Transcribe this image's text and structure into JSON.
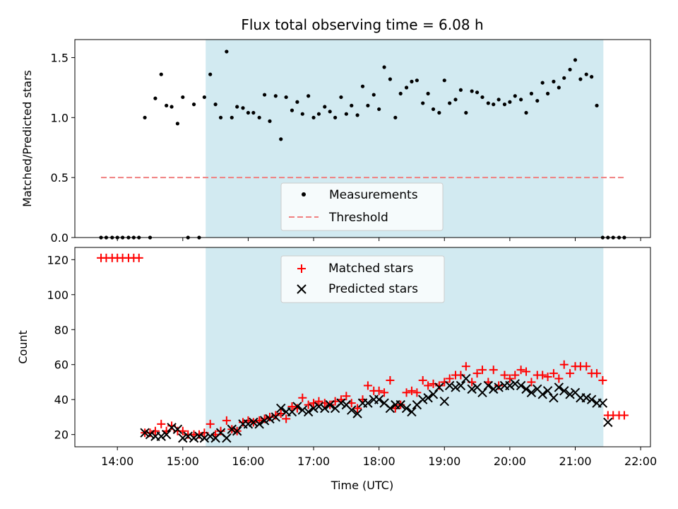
{
  "chart_data": {
    "type": "scatter",
    "title": "Flux total observing time = 6.08 h",
    "xlabel": "Time (UTC)",
    "xticks": [
      "14:00",
      "15:00",
      "16:00",
      "17:00",
      "18:00",
      "19:00",
      "20:00",
      "21:00",
      "22:00"
    ],
    "xlim_hours": [
      13.35,
      22.15
    ],
    "observing_window_hours": [
      15.35,
      21.43
    ],
    "colors": {
      "window": "#add8e6",
      "threshold": "#f08080",
      "measurements": "#000000",
      "matched": "#ff0000",
      "predicted": "#000000"
    },
    "top": {
      "ylabel": "Matched/Predicted stars",
      "ylim": [
        0,
        1.65
      ],
      "yticks": [
        "0.0",
        "0.5",
        "1.0",
        "1.5"
      ],
      "threshold": {
        "name": "Threshold",
        "value": 0.5,
        "x_range_hours": [
          13.75,
          21.75
        ]
      },
      "legend": {
        "measurements": "Measurements",
        "threshold": "Threshold",
        "placement": "lower-center"
      },
      "measurements": {
        "x": [
          13.75,
          13.83,
          13.92,
          14.0,
          14.08,
          14.17,
          14.25,
          14.33,
          14.42,
          14.5,
          14.58,
          14.67,
          14.75,
          14.83,
          14.92,
          15.0,
          15.08,
          15.17,
          15.25,
          15.33,
          15.42,
          15.5,
          15.58,
          15.67,
          15.75,
          15.83,
          15.92,
          16.0,
          16.08,
          16.17,
          16.25,
          16.33,
          16.42,
          16.5,
          16.58,
          16.67,
          16.75,
          16.83,
          16.92,
          17.0,
          17.08,
          17.17,
          17.25,
          17.33,
          17.42,
          17.5,
          17.58,
          17.67,
          17.75,
          17.83,
          17.92,
          18.0,
          18.08,
          18.17,
          18.25,
          18.33,
          18.42,
          18.5,
          18.58,
          18.67,
          18.75,
          18.83,
          18.92,
          19.0,
          19.08,
          19.17,
          19.25,
          19.33,
          19.42,
          19.5,
          19.58,
          19.67,
          19.75,
          19.83,
          19.92,
          20.0,
          20.08,
          20.17,
          20.25,
          20.33,
          20.42,
          20.5,
          20.58,
          20.67,
          20.75,
          20.83,
          20.92,
          21.0,
          21.08,
          21.17,
          21.25,
          21.33,
          21.42,
          21.5,
          21.58,
          21.67,
          21.75
        ],
        "y": [
          0,
          0,
          0,
          0,
          0,
          0,
          0,
          0,
          1.0,
          0,
          1.16,
          1.36,
          1.1,
          1.09,
          0.95,
          1.17,
          0,
          1.11,
          0,
          1.17,
          1.36,
          1.11,
          1.0,
          1.55,
          1.0,
          1.09,
          1.08,
          1.04,
          1.04,
          1.0,
          1.19,
          0.97,
          1.18,
          0.82,
          1.17,
          1.06,
          1.13,
          1.03,
          1.18,
          1.0,
          1.03,
          1.09,
          1.05,
          1.0,
          1.17,
          1.03,
          1.1,
          1.02,
          1.26,
          1.1,
          1.19,
          1.07,
          1.42,
          1.32,
          1.0,
          1.2,
          1.25,
          1.3,
          1.31,
          1.12,
          1.2,
          1.07,
          1.04,
          1.31,
          1.12,
          1.15,
          1.23,
          1.04,
          1.22,
          1.21,
          1.17,
          1.12,
          1.11,
          1.15,
          1.11,
          1.13,
          1.18,
          1.15,
          1.04,
          1.2,
          1.14,
          1.29,
          1.2,
          1.3,
          1.25,
          1.33,
          1.4,
          1.48,
          1.32,
          1.36,
          1.34,
          1.1,
          0,
          0,
          0,
          0,
          0
        ]
      }
    },
    "bottom": {
      "ylabel": "Count",
      "ylim": [
        13,
        127
      ],
      "yticks": [
        "20",
        "40",
        "60",
        "80",
        "100",
        "120"
      ],
      "legend": {
        "matched": "Matched stars",
        "predicted": "Predicted stars",
        "placement": "upper-center"
      },
      "series": [
        {
          "name": "Matched stars",
          "x": [
            13.75,
            13.83,
            13.92,
            14.0,
            14.08,
            14.17,
            14.25,
            14.33,
            14.42,
            14.5,
            14.58,
            14.67,
            14.75,
            14.83,
            14.92,
            15.0,
            15.08,
            15.17,
            15.25,
            15.33,
            15.42,
            15.5,
            15.58,
            15.67,
            15.75,
            15.83,
            15.92,
            16.0,
            16.08,
            16.17,
            16.25,
            16.33,
            16.42,
            16.5,
            16.58,
            16.67,
            16.75,
            16.83,
            16.92,
            17.0,
            17.08,
            17.17,
            17.25,
            17.33,
            17.42,
            17.5,
            17.58,
            17.67,
            17.75,
            17.83,
            17.92,
            18.0,
            18.08,
            18.17,
            18.25,
            18.33,
            18.42,
            18.5,
            18.58,
            18.67,
            18.75,
            18.83,
            18.92,
            19.0,
            19.08,
            19.17,
            19.25,
            19.33,
            19.42,
            19.5,
            19.58,
            19.67,
            19.75,
            19.83,
            19.92,
            20.0,
            20.08,
            20.17,
            20.25,
            20.33,
            20.42,
            20.5,
            20.58,
            20.67,
            20.75,
            20.83,
            20.92,
            21.0,
            21.08,
            21.17,
            21.25,
            21.33,
            21.42,
            21.5,
            21.58,
            21.67,
            21.75
          ],
          "values": [
            121,
            121,
            121,
            121,
            121,
            121,
            121,
            121,
            21,
            21,
            22,
            26,
            22,
            25,
            22,
            22,
            20,
            20,
            20,
            21,
            26,
            20,
            22,
            28,
            23,
            22,
            27,
            28,
            27,
            28,
            29,
            30,
            31,
            32,
            29,
            36,
            35,
            41,
            37,
            38,
            39,
            38,
            37,
            39,
            40,
            42,
            38,
            35,
            40,
            48,
            45,
            45,
            44,
            51,
            35,
            37,
            44,
            45,
            44,
            51,
            48,
            49,
            48,
            50,
            52,
            54,
            54,
            59,
            50,
            55,
            57,
            50,
            57,
            48,
            54,
            52,
            54,
            57,
            56,
            50,
            54,
            54,
            53,
            55,
            52,
            60,
            55,
            59,
            59,
            59,
            55,
            55,
            51,
            31,
            31,
            31,
            31
          ]
        },
        {
          "name": "Predicted stars",
          "x": [
            14.42,
            14.5,
            14.58,
            14.67,
            14.75,
            14.83,
            14.92,
            15.0,
            15.08,
            15.17,
            15.25,
            15.33,
            15.42,
            15.5,
            15.58,
            15.67,
            15.75,
            15.83,
            15.92,
            16.0,
            16.08,
            16.17,
            16.25,
            16.33,
            16.42,
            16.5,
            16.58,
            16.67,
            16.75,
            16.83,
            16.92,
            17.0,
            17.08,
            17.17,
            17.25,
            17.33,
            17.42,
            17.5,
            17.58,
            17.67,
            17.75,
            17.83,
            17.92,
            18.0,
            18.08,
            18.17,
            18.25,
            18.33,
            18.42,
            18.5,
            18.58,
            18.67,
            18.75,
            18.83,
            18.92,
            19.0,
            19.08,
            19.17,
            19.25,
            19.33,
            19.42,
            19.5,
            19.58,
            19.67,
            19.75,
            19.83,
            19.92,
            20.0,
            20.08,
            20.17,
            20.25,
            20.33,
            20.42,
            20.5,
            20.58,
            20.67,
            20.75,
            20.83,
            20.92,
            21.0,
            21.08,
            21.17,
            21.25,
            21.33,
            21.42,
            21.5
          ],
          "values": [
            21,
            20,
            19,
            19,
            20,
            24,
            23,
            18,
            19,
            18,
            19,
            18,
            19,
            18,
            21,
            18,
            23,
            22,
            26,
            26,
            27,
            26,
            28,
            29,
            30,
            35,
            33,
            33,
            36,
            34,
            33,
            35,
            36,
            35,
            37,
            35,
            38,
            37,
            34,
            32,
            38,
            38,
            40,
            40,
            38,
            35,
            37,
            37,
            35,
            33,
            37,
            40,
            41,
            43,
            47,
            39,
            48,
            47,
            48,
            52,
            46,
            47,
            44,
            48,
            46,
            47,
            48,
            48,
            49,
            48,
            46,
            44,
            46,
            43,
            45,
            41,
            47,
            45,
            43,
            44,
            41,
            41,
            40,
            38,
            38,
            27
          ]
        }
      ]
    }
  }
}
